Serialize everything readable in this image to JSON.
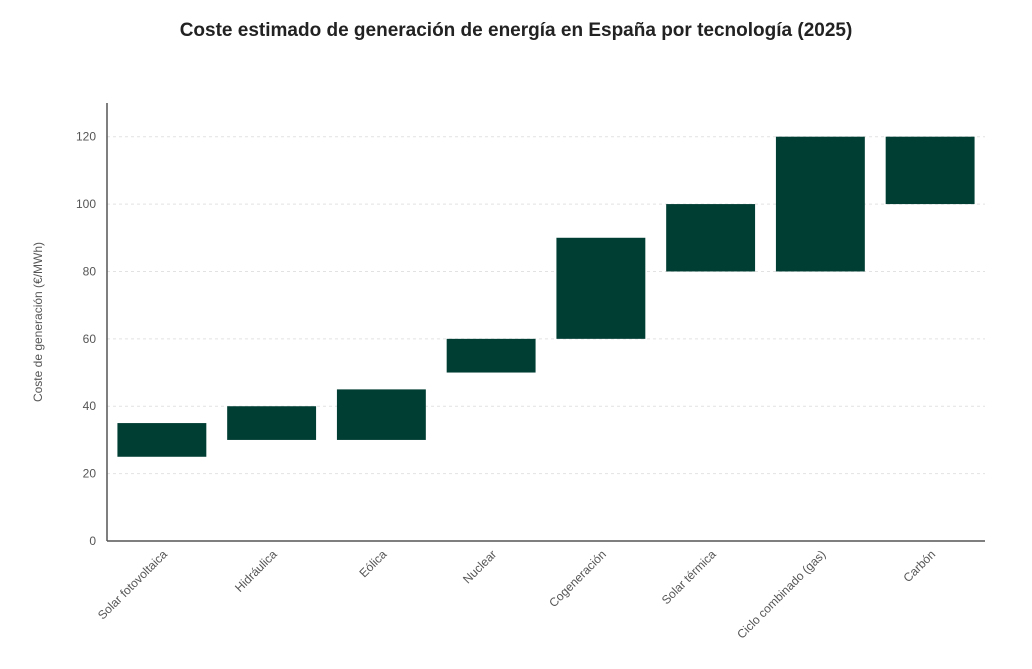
{
  "chart_data": {
    "type": "bar",
    "subtype": "floating-range",
    "title": "Coste estimado de generación de energía en España por tecnología (2025)",
    "xlabel": "",
    "ylabel": "Coste de generación (€/MWh)",
    "ylim": [
      0,
      130
    ],
    "yticks": [
      0,
      20,
      40,
      60,
      80,
      100,
      120
    ],
    "grid": true,
    "legend": "none",
    "categories": [
      "Solar fotovoltaica",
      "Hidráulica",
      "Eólica",
      "Nuclear",
      "Cogeneración",
      "Solar térmica",
      "Ciclo combinado (gas)",
      "Carbón"
    ],
    "ranges": [
      [
        25,
        35
      ],
      [
        30,
        40
      ],
      [
        30,
        45
      ],
      [
        50,
        60
      ],
      [
        60,
        90
      ],
      [
        80,
        100
      ],
      [
        80,
        120
      ],
      [
        100,
        120
      ]
    ],
    "color": "#003D33"
  }
}
